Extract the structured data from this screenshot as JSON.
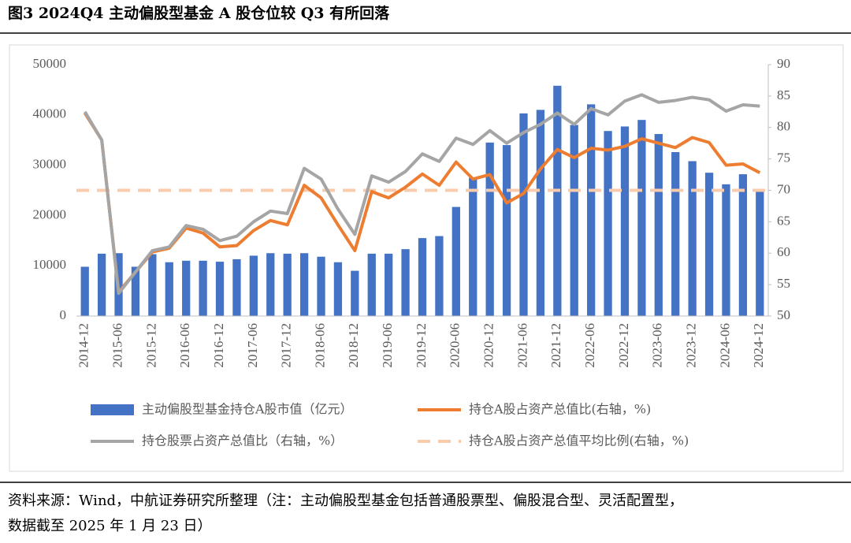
{
  "title": "图3  2024Q4 主动偏股型基金 A 股仓位较 Q3 有所回落",
  "chart_data": {
    "type": "bar_line",
    "categories": [
      "2014-12",
      null,
      "2015-06",
      null,
      "2015-12",
      null,
      "2016-06",
      null,
      "2016-12",
      null,
      "2017-06",
      null,
      "2017-12",
      null,
      "2018-06",
      null,
      "2018-12",
      null,
      "2019-06",
      null,
      "2019-12",
      null,
      "2020-06",
      null,
      "2020-12",
      null,
      "2021-06",
      null,
      "2021-12",
      null,
      "2022-06",
      null,
      "2022-12",
      null,
      "2023-06",
      null,
      "2023-12",
      null,
      "2024-06",
      null,
      "2024-12"
    ],
    "ylim": [
      0,
      50000
    ],
    "yticks": [
      0,
      10000,
      20000,
      30000,
      40000,
      50000
    ],
    "y2lim": [
      50,
      90
    ],
    "y2ticks": [
      50,
      55,
      60,
      65,
      70,
      75,
      80,
      85,
      90
    ],
    "grid": false,
    "series": [
      {
        "name": "主动偏股型基金持仓A股市值（亿元）",
        "type": "bar",
        "color": "#4472c4",
        "values": [
          9800,
          12400,
          12500,
          9800,
          12300,
          10700,
          11000,
          11000,
          10800,
          11300,
          12000,
          12500,
          12400,
          12500,
          11800,
          10700,
          9000,
          12400,
          12400,
          13300,
          15500,
          15900,
          21700,
          27500,
          34500,
          34000,
          40300,
          41000,
          45800,
          38000,
          42100,
          36800,
          37700,
          39000,
          36200,
          32600,
          30800,
          28500,
          26200,
          28200,
          25000
        ]
      },
      {
        "name": "持仓A股占资产总值比(右轴，%)",
        "type": "line",
        "axis": "y2",
        "color": "#ed7d31",
        "values": [
          82.3,
          78,
          53.8,
          57,
          60.2,
          60.8,
          64,
          63.2,
          61,
          61.2,
          63.6,
          65.2,
          64.5,
          70.8,
          68.8,
          64.5,
          60.4,
          69.8,
          68.8,
          70.5,
          72.6,
          70.8,
          74.5,
          71.8,
          72.5,
          68,
          69.5,
          73.4,
          76.5,
          75.2,
          76.7,
          76.4,
          77,
          78.2,
          77.5,
          76.8,
          78.4,
          77.6,
          74,
          74.2,
          72.8
        ]
      },
      {
        "name": "持仓股票占资产总值比（右轴，%）",
        "type": "line",
        "axis": "y2",
        "color": "#a5a5a5",
        "values": [
          82.5,
          78,
          53.6,
          57,
          60.4,
          61,
          64.4,
          63.8,
          62,
          62.7,
          65,
          66.7,
          66.3,
          73.5,
          71.8,
          67,
          63,
          72.3,
          71.3,
          73,
          75.8,
          74.6,
          78.3,
          77.3,
          79.5,
          77.5,
          79.2,
          80.5,
          82.3,
          80.5,
          83,
          82,
          84.2,
          85.2,
          84,
          84.3,
          84.8,
          84.4,
          82.6,
          83.6,
          83.4
        ]
      },
      {
        "name": "持仓A股占资产总值平均比例(右轴，%)",
        "type": "hline",
        "axis": "y2",
        "color": "#f8cbad",
        "value": 70
      }
    ]
  },
  "source": [
    "资料来源：Wind，中航证券研究所整理（注：主动偏股型基金包括普通股票型、偏股混合型、灵活配置型，",
    "数据截至 2025 年 1 月 23 日）"
  ]
}
